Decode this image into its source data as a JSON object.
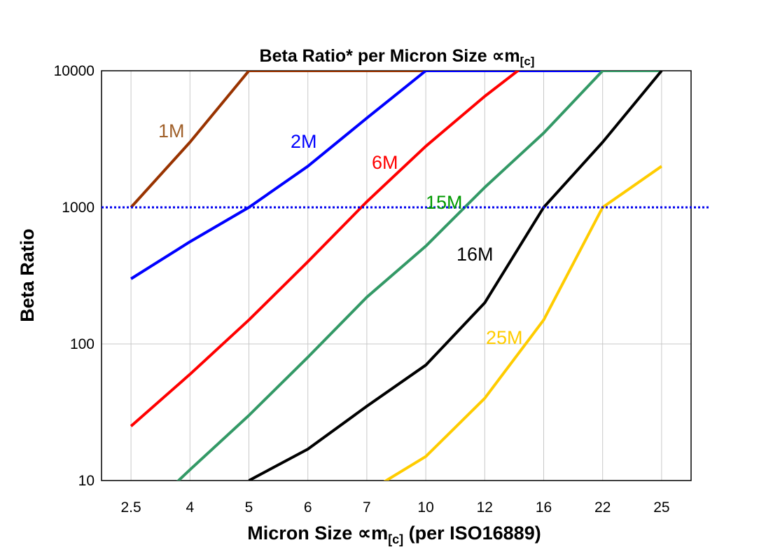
{
  "chart_data": {
    "type": "line",
    "title": "Beta Ratio* per Micron Size ∝m[c]",
    "title_main": "Beta Ratio* per Micron Size ∝m",
    "title_sub": "[c]",
    "xlabel_main": "Micron Size ∝m",
    "xlabel_sub": "[c]",
    "xlabel_tail": " (per ISO16889)",
    "ylabel": "Beta Ratio",
    "y_scale": "log",
    "ylim": [
      10,
      10000
    ],
    "y_ticks": [
      "10",
      "100",
      "1000",
      "10000"
    ],
    "categories": [
      "2.5",
      "4",
      "5",
      "6",
      "7",
      "10",
      "12",
      "16",
      "22",
      "25"
    ],
    "grid": "vertical at each category, horizontal at 100",
    "reference_line": {
      "y": 1000,
      "style": "dotted",
      "color": "#0000ee"
    },
    "series": [
      {
        "name": "1M",
        "color": "#993300",
        "label_color": "#a0602a",
        "values": [
          1000,
          3000,
          10000,
          10000,
          10000,
          10000,
          10000,
          10000,
          10000,
          10000
        ]
      },
      {
        "name": "2M",
        "color": "#0000ff",
        "label_color": "#0000ff",
        "values": [
          300,
          560,
          1000,
          2000,
          4500,
          10000,
          10000,
          10000,
          10000,
          10000
        ]
      },
      {
        "name": "6M",
        "color": "#ff0000",
        "label_color": "#ff0000",
        "values": [
          25,
          60,
          150,
          400,
          1100,
          2800,
          6500,
          14000,
          14000,
          14000
        ]
      },
      {
        "name": "15M",
        "color": "#339966",
        "label_color": "#009900",
        "values": [
          4.7,
          12,
          30,
          80,
          220,
          520,
          1400,
          3500,
          10000,
          10000
        ]
      },
      {
        "name": "16M",
        "color": "#000000",
        "label_color": "#000000",
        "values": [
          null,
          null,
          10,
          17,
          35,
          70,
          200,
          1000,
          3000,
          10000
        ]
      },
      {
        "name": "25M",
        "color": "#ffcc00",
        "label_color": "#ffcc00",
        "values": [
          null,
          null,
          null,
          null,
          8.2,
          15,
          40,
          150,
          1000,
          2000
        ]
      }
    ]
  }
}
